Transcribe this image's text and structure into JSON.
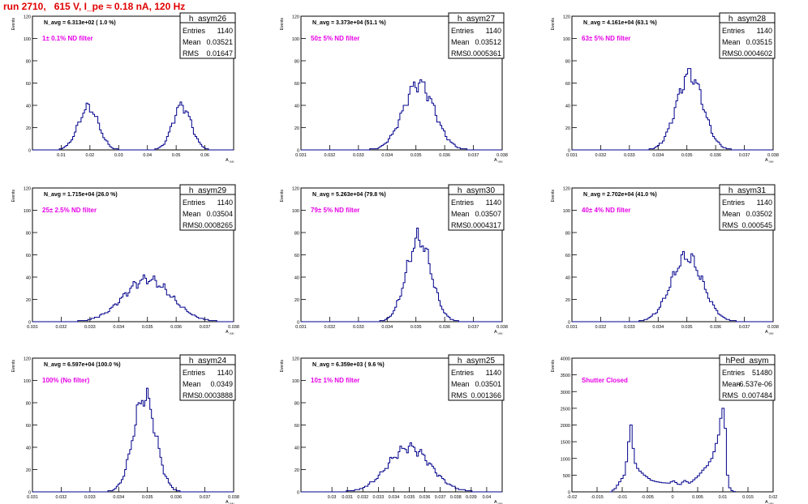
{
  "title": "run 2710,   615 V, I_pe ≈ 0.18 nA, 120 Hz",
  "chart_data": [
    {
      "type": "histogram",
      "name": "h_asym26",
      "navg": "N_avg = 6.313e+02 ( 1.0 %)",
      "label": "1± 0.1% ND filter",
      "ylabel": "Events",
      "xlabel": "A_uuu",
      "entries": "1140",
      "mean": "0.03521",
      "rms": "0.01647",
      "xlim": [
        0,
        0.07
      ],
      "ylim": [
        0,
        120
      ],
      "xticks": [
        "0.01",
        "0.02",
        "0.03",
        "0.04",
        "0.05",
        "0.06"
      ],
      "xtick_vals": [
        0.01,
        0.02,
        0.03,
        0.04,
        0.05,
        0.06
      ],
      "yticks": [
        0,
        20,
        40,
        60,
        80,
        100,
        120
      ],
      "peaks": [
        {
          "mu": 0.0195,
          "sigma": 0.0035,
          "amp": 38
        },
        {
          "mu": 0.052,
          "sigma": 0.0032,
          "amp": 40
        }
      ]
    },
    {
      "type": "histogram",
      "name": "h_asym27",
      "navg": "N_avg = 3.373e+04 (51.1 %)",
      "label": "50± 5% ND filter",
      "ylabel": "Events",
      "xlabel": "A_uuu",
      "entries": "1140",
      "mean": "0.03512",
      "rms": "0.0005361",
      "xlim": [
        0.031,
        0.038
      ],
      "ylim": [
        0,
        120
      ],
      "xticks": [
        "0.031",
        "0.032",
        "0.033",
        "0.034",
        "0.035",
        "0.036",
        "0.037",
        "0.038"
      ],
      "xtick_vals": [
        0.031,
        0.032,
        0.033,
        0.034,
        0.035,
        0.036,
        0.037,
        0.038
      ],
      "yticks": [
        0,
        20,
        40,
        60,
        80,
        100,
        120
      ],
      "peaks": [
        {
          "mu": 0.0351,
          "sigma": 0.00054,
          "amp": 60
        }
      ]
    },
    {
      "type": "histogram",
      "name": "h_asym28",
      "navg": "N_avg = 4.161e+04 (63.1 %)",
      "label": "63± 5% ND filter",
      "ylabel": "Events",
      "xlabel": "A_uuu",
      "entries": "1140",
      "mean": "0.03515",
      "rms": "0.0004602",
      "xlim": [
        0.031,
        0.038
      ],
      "ylim": [
        0,
        120
      ],
      "xticks": [
        "0.031",
        "0.032",
        "0.033",
        "0.034",
        "0.035",
        "0.036",
        "0.037",
        "0.038"
      ],
      "xtick_vals": [
        0.031,
        0.032,
        0.033,
        0.034,
        0.035,
        0.036,
        0.037,
        0.038
      ],
      "yticks": [
        0,
        20,
        40,
        60,
        80,
        100,
        120
      ],
      "peaks": [
        {
          "mu": 0.0351,
          "sigma": 0.00046,
          "amp": 68
        }
      ]
    },
    {
      "type": "histogram",
      "name": "h_asym29",
      "navg": "N_avg = 1.715e+04 (26.0 %)",
      "label": "25± 2.5% ND filter",
      "ylabel": "Events",
      "xlabel": "A_uuu",
      "entries": "1140",
      "mean": "0.03504",
      "rms": "0.0008265",
      "xlim": [
        0.031,
        0.038
      ],
      "ylim": [
        0,
        120
      ],
      "xticks": [
        "0.031",
        "0.032",
        "0.033",
        "0.034",
        "0.035",
        "0.036",
        "0.037",
        "0.038"
      ],
      "xtick_vals": [
        0.031,
        0.032,
        0.033,
        0.034,
        0.035,
        0.036,
        0.037,
        0.038
      ],
      "yticks": [
        0,
        20,
        40,
        60,
        80,
        100,
        120
      ],
      "peaks": [
        {
          "mu": 0.035,
          "sigma": 0.00083,
          "amp": 38
        }
      ]
    },
    {
      "type": "histogram",
      "name": "h_asym30",
      "navg": "N_avg = 5.263e+04 (79.8 %)",
      "label": "79± 5% ND filter",
      "ylabel": "Events",
      "xlabel": "A_uuu",
      "entries": "1140",
      "mean": "0.03507",
      "rms": "0.0004317",
      "xlim": [
        0.031,
        0.038
      ],
      "ylim": [
        0,
        120
      ],
      "xticks": [
        "0.031",
        "0.032",
        "0.033",
        "0.034",
        "0.035",
        "0.036",
        "0.037",
        "0.038"
      ],
      "xtick_vals": [
        0.031,
        0.032,
        0.033,
        0.034,
        0.035,
        0.036,
        0.037,
        0.038
      ],
      "yticks": [
        0,
        20,
        40,
        60,
        80,
        100,
        120
      ],
      "peaks": [
        {
          "mu": 0.0351,
          "sigma": 0.00043,
          "amp": 74
        }
      ]
    },
    {
      "type": "histogram",
      "name": "h_asym31",
      "navg": "N_avg = 2.702e+04 (41.0 %)",
      "label": "40± 4% ND filter",
      "ylabel": "Events",
      "xlabel": "A_uuu",
      "entries": "1140",
      "mean": "0.03502",
      "rms": "0.000545",
      "xlim": [
        0.031,
        0.038
      ],
      "ylim": [
        0,
        120
      ],
      "xticks": [
        "0.031",
        "0.032",
        "0.033",
        "0.034",
        "0.035",
        "0.036",
        "0.037",
        "0.038"
      ],
      "xtick_vals": [
        0.031,
        0.032,
        0.033,
        0.034,
        0.035,
        0.036,
        0.037,
        0.038
      ],
      "yticks": [
        0,
        20,
        40,
        60,
        80,
        100,
        120
      ],
      "peaks": [
        {
          "mu": 0.035,
          "sigma": 0.00055,
          "amp": 58
        }
      ]
    },
    {
      "type": "histogram",
      "name": "h_asym24",
      "navg": "N_avg = 6.597e+04 (100.0 %)",
      "label": "100% (No filter)",
      "ylabel": "Events",
      "xlabel": "A_uuu",
      "entries": "1140",
      "mean": "0.0349",
      "rms": "0.0003888",
      "xlim": [
        0.031,
        0.038
      ],
      "ylim": [
        0,
        120
      ],
      "xticks": [
        "0.031",
        "0.032",
        "0.033",
        "0.034",
        "0.035",
        "0.036",
        "0.037",
        "0.038"
      ],
      "xtick_vals": [
        0.031,
        0.032,
        0.033,
        0.034,
        0.035,
        0.036,
        0.037,
        0.038
      ],
      "yticks": [
        0,
        20,
        40,
        60,
        80,
        100,
        120
      ],
      "peaks": [
        {
          "mu": 0.0349,
          "sigma": 0.00039,
          "amp": 86
        }
      ]
    },
    {
      "type": "histogram",
      "name": "h_asym25",
      "navg": "N_avg = 6.359e+03 ( 9.6 %)",
      "label": "10± 1% ND filter",
      "ylabel": "Events",
      "xlabel": "A_uuu",
      "entries": "1140",
      "mean": "0.03501",
      "rms": "0.001366",
      "xlim": [
        0.028,
        0.041
      ],
      "ylim": [
        0,
        120
      ],
      "xticks": [
        "0.03",
        "0.031",
        "0.032",
        "0.033",
        "0.034",
        "0.035",
        "0.036",
        "0.037",
        "0.038",
        "0.039",
        "0.04"
      ],
      "xtick_vals": [
        0.03,
        0.031,
        0.032,
        0.033,
        0.034,
        0.035,
        0.036,
        0.037,
        0.038,
        0.039,
        0.04
      ],
      "yticks": [
        0,
        20,
        40,
        60,
        80,
        100,
        120
      ],
      "peaks": [
        {
          "mu": 0.035,
          "sigma": 0.00137,
          "amp": 40
        }
      ]
    },
    {
      "type": "histogram",
      "name": "hPed_asym",
      "navg": "",
      "label": "Shutter Closed",
      "ylabel": "Events",
      "xlabel": "A_uuu",
      "entries": "51480",
      "mean": "-6.537e-06",
      "rms": "0.007484",
      "xlim": [
        -0.02,
        0.02
      ],
      "ylim": [
        0,
        4000
      ],
      "xticks": [
        "-0.02",
        "-0.015",
        "-0.01",
        "-0.005",
        "0",
        "0.005",
        "0.01",
        "0.015",
        "0.02"
      ],
      "xtick_vals": [
        -0.02,
        -0.015,
        -0.01,
        -0.005,
        0,
        0.005,
        0.01,
        0.015,
        0.02
      ],
      "yticks": [
        0,
        500,
        1000,
        1500,
        2000,
        2500,
        3000,
        3500,
        4000
      ],
      "peaks": []
    }
  ]
}
